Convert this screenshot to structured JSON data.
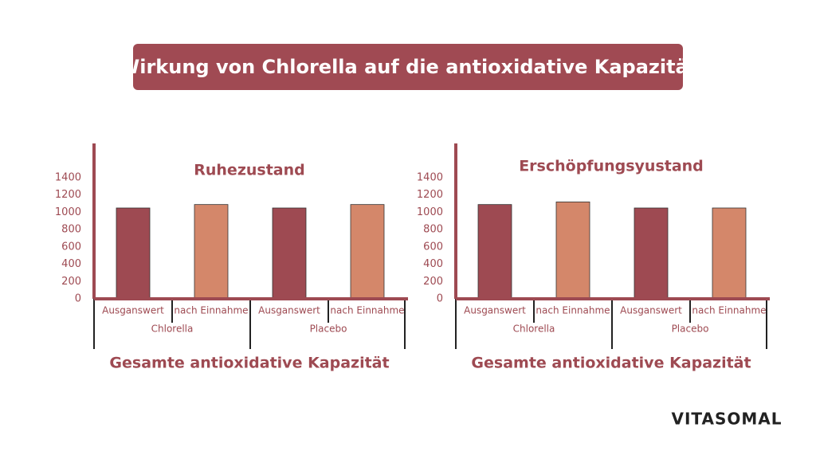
{
  "header": {
    "title": "Wirkung von Chlorella auf die antioxidative Kapazität"
  },
  "logo": "VITASOMAL",
  "chart_data": [
    {
      "type": "bar",
      "title": "Ruhezustand",
      "xlabel": "Gesamte antioxidative Kapazität",
      "categories": [
        "Ausganswert",
        "nach Einnahme",
        "Ausganswert",
        "nach Einnahme"
      ],
      "groups": [
        "Chlorella",
        "Placebo"
      ],
      "values": [
        1050,
        1090,
        1050,
        1090
      ],
      "colors": [
        "#9e4a52",
        "#d4876a",
        "#9e4a52",
        "#d4876a"
      ],
      "ylim": [
        0,
        1400
      ],
      "yticks": [
        0,
        200,
        400,
        600,
        800,
        1000,
        1200,
        1400
      ]
    },
    {
      "type": "bar",
      "title": "Erschöpfungsyustand",
      "xlabel": "Gesamte antioxidative Kapazität",
      "categories": [
        "Ausganswert",
        "nach Einnahme",
        "Ausganswert",
        "nach Einnahme"
      ],
      "groups": [
        "Chlorella",
        "Placebo"
      ],
      "values": [
        1090,
        1120,
        1050,
        1050
      ],
      "colors": [
        "#9e4a52",
        "#d4876a",
        "#9e4a52",
        "#d4876a"
      ],
      "ylim": [
        0,
        1400
      ],
      "yticks": [
        0,
        200,
        400,
        600,
        800,
        1000,
        1200,
        1400
      ]
    }
  ]
}
